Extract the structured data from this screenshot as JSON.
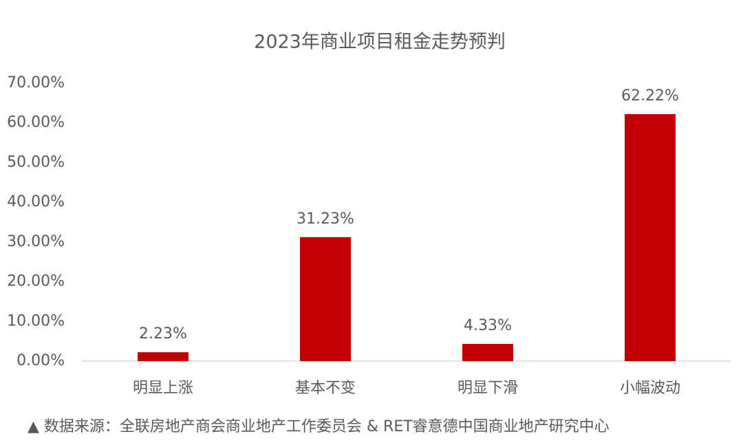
{
  "chart_data": {
    "type": "bar",
    "title": "2023年商业项目租金走势预判",
    "categories": [
      "明显上涨",
      "基本不变",
      "明显下滑",
      "小幅波动"
    ],
    "values": [
      2.23,
      31.23,
      4.33,
      62.22
    ],
    "value_labels": [
      "2.23%",
      "31.23%",
      "4.33%",
      "62.22%"
    ],
    "color": "#c00000",
    "ylim": [
      0,
      70
    ],
    "yticks": [
      {
        "value": 0,
        "label": "0.00%"
      },
      {
        "value": 10,
        "label": "10.00%"
      },
      {
        "value": 20,
        "label": "20.00%"
      },
      {
        "value": 30,
        "label": "30.00%"
      },
      {
        "value": 40,
        "label": "40.00%"
      },
      {
        "value": 50,
        "label": "50.00%"
      },
      {
        "value": 60,
        "label": "60.00%"
      },
      {
        "value": 70,
        "label": "70.00%"
      }
    ],
    "grid": false,
    "source": "▲ 数据来源：全联房地产商会商业地产工作委员会 & RET睿意德中国商业地产研究中心"
  }
}
